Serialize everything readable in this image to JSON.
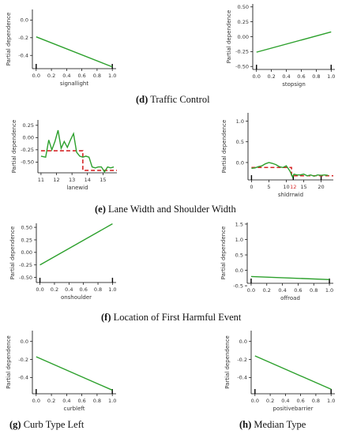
{
  "captions": [
    {
      "letter": "(d)",
      "text": "Traffic Control"
    },
    {
      "letter": "(e)",
      "text": "Lane Width and Shoulder Width"
    },
    {
      "letter": "(f)",
      "text": "Location of First Harmful Event"
    },
    {
      "letter": "(g)",
      "text": "Curb Type Left"
    },
    {
      "letter": "(h)",
      "text": "Median Type"
    }
  ],
  "colors": {
    "line": "#2ca02c",
    "threshold": "#d62728",
    "axis": "#000000",
    "text": "#333333"
  },
  "chart_data": [
    {
      "id": "signallight",
      "type": "line",
      "ylabel": "Partial dependence",
      "xlabel": "signallight",
      "xlim": [
        -0.05,
        1.05
      ],
      "ylim": [
        -0.55,
        0.12
      ],
      "xticks": [
        0,
        0.2,
        0.4,
        0.6,
        0.8,
        1
      ],
      "xticklabels": [
        "0.0",
        "0.2",
        "0.4",
        "0.6",
        "0.8",
        "1.0"
      ],
      "yticks": [
        0,
        -0.2,
        -0.4
      ],
      "yticklabels": [
        "0.0",
        "-0.2",
        "-0.4"
      ],
      "series": [
        {
          "x": [
            0,
            1
          ],
          "y": [
            -0.19,
            -0.53
          ]
        }
      ],
      "rug": [
        0,
        1
      ]
    },
    {
      "id": "stopsign",
      "type": "line",
      "ylabel": "Partial dependence",
      "xlabel": "stopsign",
      "xlim": [
        -0.05,
        1.05
      ],
      "ylim": [
        -0.55,
        0.55
      ],
      "xticks": [
        0,
        0.2,
        0.4,
        0.6,
        0.8,
        1
      ],
      "xticklabels": [
        "0.0",
        "0.2",
        "0.4",
        "0.6",
        "0.8",
        "1.0"
      ],
      "yticks": [
        0.5,
        0.25,
        0,
        -0.25,
        -0.5
      ],
      "yticklabels": [
        "0.50",
        "0.25",
        "0.00",
        "-0.25",
        "-0.50"
      ],
      "series": [
        {
          "x": [
            0,
            1
          ],
          "y": [
            -0.26,
            0.08
          ]
        }
      ],
      "rug": [
        0,
        1
      ]
    },
    {
      "id": "lanewid",
      "type": "line",
      "ylabel": "Partial dependence",
      "xlabel": "lanewid",
      "xlim": [
        10.8,
        15.9
      ],
      "ylim": [
        -0.72,
        0.36
      ],
      "xticks": [
        11,
        12,
        13,
        14,
        15
      ],
      "xticklabels": [
        "11",
        "12",
        "13",
        "14",
        "15"
      ],
      "yticks": [
        0.25,
        0,
        -0.25,
        -0.5
      ],
      "yticklabels": [
        "0.25",
        "0.00",
        "-0.25",
        "-0.50"
      ],
      "series": [
        {
          "x": [
            11,
            11.3,
            11.5,
            11.7,
            11.9,
            12.1,
            12.3,
            12.5,
            12.7,
            12.9,
            13.1,
            13.3,
            13.5,
            13.7,
            13.9,
            14.1,
            14.3,
            14.5,
            14.7,
            14.9,
            15.1,
            15.3,
            15.5,
            15.7
          ],
          "y": [
            -0.38,
            -0.4,
            -0.05,
            -0.25,
            -0.08,
            0.15,
            -0.22,
            -0.08,
            -0.2,
            -0.05,
            0.08,
            -0.3,
            -0.38,
            -0.4,
            -0.38,
            -0.4,
            -0.6,
            -0.62,
            -0.6,
            -0.6,
            -0.7,
            -0.6,
            -0.62,
            -0.6
          ]
        }
      ],
      "threshold": {
        "x": [
          11,
          13.7,
          13.7,
          15.9
        ],
        "y": [
          -0.27,
          -0.27,
          -0.67,
          -0.67
        ]
      },
      "rug": []
    },
    {
      "id": "shldrrwid",
      "type": "line",
      "ylabel": "Partial dependence",
      "xlabel": "shldrrwid",
      "xlim": [
        -1,
        23.5
      ],
      "ylim": [
        -0.42,
        1.2
      ],
      "xticks": [
        0,
        5,
        10,
        15,
        20
      ],
      "xticklabels": [
        "0",
        "5",
        "10",
        "15",
        "20"
      ],
      "yticks": [
        1.0,
        0.5,
        0
      ],
      "yticklabels": [
        "1.0",
        "0.5",
        "0.0"
      ],
      "series": [
        {
          "x": [
            0,
            1,
            2,
            3,
            4,
            5,
            6,
            7,
            8,
            9,
            10,
            11,
            11.8,
            12.2,
            13,
            14,
            15,
            16,
            17,
            18,
            19,
            20,
            21,
            22
          ],
          "y": [
            -0.14,
            -0.13,
            -0.1,
            -0.08,
            -0.03,
            0.0,
            -0.02,
            -0.05,
            -0.1,
            -0.12,
            -0.08,
            -0.2,
            -0.35,
            -0.28,
            -0.3,
            -0.3,
            -0.28,
            -0.32,
            -0.3,
            -0.33,
            -0.3,
            -0.31,
            -0.3,
            -0.31
          ]
        }
      ],
      "threshold": {
        "x": [
          0,
          11.5,
          11.5,
          23.5
        ],
        "y": [
          -0.12,
          -0.12,
          -0.32,
          -0.32
        ]
      },
      "annotation": "12",
      "rug": [
        0,
        12,
        20
      ]
    },
    {
      "id": "onshoulder",
      "type": "line",
      "ylabel": "Partial dependence",
      "xlabel": "onshoulder",
      "xlim": [
        -0.05,
        1.05
      ],
      "ylim": [
        -0.6,
        0.58
      ],
      "xticks": [
        0,
        0.2,
        0.4,
        0.6,
        0.8,
        1
      ],
      "xticklabels": [
        "0.0",
        "0.2",
        "0.4",
        "0.6",
        "0.8",
        "1.0"
      ],
      "yticks": [
        0.5,
        0.25,
        0,
        -0.25,
        -0.5
      ],
      "yticklabels": [
        "0.50",
        "0.25",
        "0.00",
        "-0.25",
        "-0.50"
      ],
      "series": [
        {
          "x": [
            0,
            1
          ],
          "y": [
            -0.25,
            0.57
          ]
        }
      ],
      "rug": [
        0,
        1
      ]
    },
    {
      "id": "offroad",
      "type": "line",
      "ylabel": "Partial dependence",
      "xlabel": "offroad",
      "xlim": [
        -0.05,
        1.05
      ],
      "ylim": [
        -0.42,
        1.55
      ],
      "xticks": [
        0,
        0.2,
        0.4,
        0.6,
        0.8,
        1
      ],
      "xticklabels": [
        "0.0",
        "0.2",
        "0.4",
        "0.6",
        "0.8",
        "1.0"
      ],
      "yticks": [
        1.5,
        1.0,
        0.5,
        0,
        -0.5
      ],
      "yticklabels": [
        "1.5",
        "1.0",
        "0.5",
        "0.0",
        "-0.5"
      ],
      "series": [
        {
          "x": [
            0,
            1
          ],
          "y": [
            -0.2,
            -0.3
          ]
        }
      ],
      "rug": [
        0,
        1
      ]
    },
    {
      "id": "curbleft",
      "type": "line",
      "ylabel": "Partial dependence",
      "xlabel": "curbleft",
      "xlim": [
        -0.05,
        1.05
      ],
      "ylim": [
        -0.58,
        0.12
      ],
      "xticks": [
        0,
        0.2,
        0.4,
        0.6,
        0.8,
        1
      ],
      "xticklabels": [
        "0.0",
        "0.2",
        "0.4",
        "0.6",
        "0.8",
        "1.0"
      ],
      "yticks": [
        0,
        -0.2,
        -0.4
      ],
      "yticklabels": [
        "0.0",
        "-0.2",
        "-0.4"
      ],
      "series": [
        {
          "x": [
            0,
            1
          ],
          "y": [
            -0.17,
            -0.54
          ]
        }
      ],
      "rug": [
        0,
        1
      ]
    },
    {
      "id": "positivebarrier",
      "type": "line",
      "ylabel": "Partial dependence",
      "xlabel": "positivebarrier",
      "xlim": [
        -0.05,
        1.05
      ],
      "ylim": [
        -0.58,
        0.12
      ],
      "xticks": [
        0,
        0.2,
        0.4,
        0.6,
        0.8,
        1
      ],
      "xticklabels": [
        "0.0",
        "0.2",
        "0.4",
        "0.6",
        "0.8",
        "1.0"
      ],
      "yticks": [
        0,
        -0.2,
        -0.4
      ],
      "yticklabels": [
        "0.0",
        "-0.2",
        "-0.4"
      ],
      "series": [
        {
          "x": [
            0,
            1
          ],
          "y": [
            -0.16,
            -0.53
          ]
        }
      ],
      "rug": [
        0,
        1
      ]
    }
  ]
}
